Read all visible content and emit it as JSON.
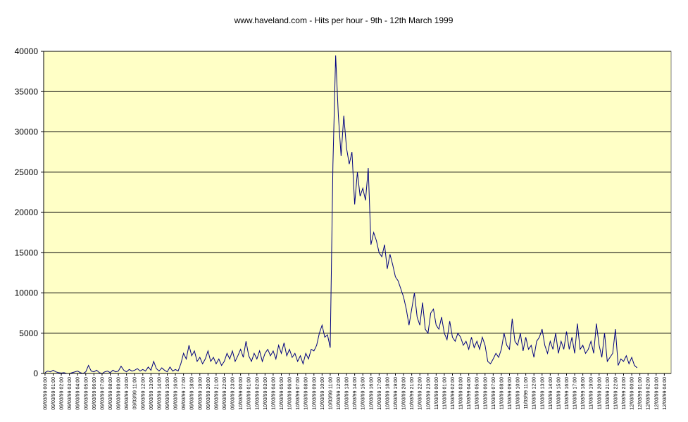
{
  "chart_data": {
    "type": "line",
    "title": "www.haveland.com - Hits per hour - 9th - 12th March 1999",
    "categories": [
      "09/03/99 00:00",
      null,
      null,
      "09/03/99 01:00",
      null,
      null,
      "09/03/99 02:00",
      null,
      null,
      "09/03/99 03:00",
      null,
      null,
      "09/03/99 04:00",
      null,
      null,
      "09/03/99 05:00",
      null,
      null,
      "09/03/99 06:00",
      null,
      null,
      "09/03/99 07:00",
      null,
      null,
      "09/03/99 08:00",
      null,
      null,
      "09/03/99 09:00",
      null,
      null,
      "09/03/99 10:00",
      null,
      null,
      "09/03/99 11:00",
      null,
      null,
      "09/03/99 12:00",
      null,
      null,
      "09/03/99 13:00",
      null,
      null,
      "09/03/99 14:00",
      null,
      null,
      "09/03/99 15:00",
      null,
      null,
      "09/03/99 16:00",
      null,
      null,
      "09/03/99 17:00",
      null,
      null,
      "09/03/99 18:00",
      null,
      null,
      "09/03/99 19:00",
      null,
      null,
      "09/03/99 20:00",
      null,
      null,
      "09/03/99 21:00",
      null,
      null,
      "09/03/99 22:00",
      null,
      null,
      "09/03/99 23:00",
      null,
      null,
      "10/03/99 00:00",
      null,
      null,
      "10/03/99 01:00",
      null,
      null,
      "10/03/99 02:00",
      null,
      null,
      "10/03/99 03:00",
      null,
      null,
      "10/03/99 04:00",
      null,
      null,
      "10/03/99 05:00",
      null,
      null,
      "10/03/99 06:00",
      null,
      null,
      "10/03/99 07:00",
      null,
      null,
      "10/03/99 08:00",
      null,
      null,
      "10/03/99 09:00",
      null,
      null,
      "10/03/99 10:00",
      null,
      null,
      "10/03/99 11:00",
      null,
      null,
      "10/03/99 12:00",
      null,
      null,
      "10/03/99 13:00",
      null,
      null,
      "10/03/99 14:00",
      null,
      null,
      "10/03/99 15:00",
      null,
      null,
      "10/03/99 16:00",
      null,
      null,
      "10/03/99 17:00",
      null,
      null,
      "10/03/99 18:00",
      null,
      null,
      "10/03/99 19:00",
      null,
      null,
      "10/03/99 20:00",
      null,
      null,
      "10/03/99 21:00",
      null,
      null,
      "10/03/99 22:00",
      null,
      null,
      "10/03/99 23:00",
      null,
      null,
      "11/03/99 00:00",
      null,
      null,
      "11/03/99 01:00",
      null,
      null,
      "11/03/99 02:00",
      null,
      null,
      "11/03/99 03:00",
      null,
      null,
      "11/03/99 04:00",
      null,
      null,
      "11/03/99 05:00",
      null,
      null,
      "11/03/99 06:00",
      null,
      null,
      "11/03/99 07:00",
      null,
      null,
      "11/03/99 08:00",
      null,
      null,
      "11/03/99 09:00",
      null,
      null,
      "11/03/99 10:00",
      null,
      null,
      "11/03/99 11:00",
      null,
      null,
      "11/03/99 12:00",
      null,
      null,
      "11/03/99 13:00",
      null,
      null,
      "11/03/99 14:00",
      null,
      null,
      "11/03/99 15:00",
      null,
      null,
      "11/03/99 16:00",
      null,
      null,
      "11/03/99 17:00",
      null,
      null,
      "11/03/99 18:00",
      null,
      null,
      "11/03/99 19:00",
      null,
      null,
      "11/03/99 20:00",
      null,
      null,
      "11/03/99 21:00",
      null,
      null,
      "11/03/99 22:00",
      null,
      null,
      "11/03/99 23:00",
      null,
      null,
      "12/03/99 00:00",
      null,
      null,
      "12/03/99 01:00",
      null,
      null,
      "12/03/99 02:00",
      null,
      null,
      "12/03/99 03:00",
      null,
      null,
      "12/03/99 04:00",
      null,
      null
    ],
    "series": [
      {
        "color": "#000080",
        "values": [
          100,
          300,
          200,
          400,
          200,
          100,
          50,
          100,
          0,
          0,
          100,
          200,
          300,
          100,
          0,
          200,
          1000,
          300,
          200,
          400,
          100,
          0,
          200,
          300,
          100,
          400,
          200,
          300,
          900,
          400,
          200,
          500,
          300,
          400,
          600,
          300,
          500,
          300,
          800,
          400,
          1500,
          600,
          300,
          700,
          400,
          200,
          800,
          300,
          500,
          300,
          1200,
          2500,
          1800,
          3500,
          2200,
          2800,
          1500,
          2000,
          1200,
          1800,
          2800,
          1500,
          2000,
          1200,
          1800,
          1000,
          1500,
          2500,
          1800,
          2800,
          1500,
          2200,
          3000,
          2000,
          4000,
          2200,
          1500,
          2500,
          1800,
          2800,
          1500,
          2500,
          3000,
          2200,
          2800,
          1800,
          3500,
          2500,
          3800,
          2200,
          3000,
          2000,
          2500,
          1500,
          2200,
          1200,
          2500,
          1800,
          3000,
          2800,
          3500,
          5000,
          6000,
          4500,
          4800,
          3200,
          26000,
          39500,
          32000,
          27000,
          32000,
          28000,
          26000,
          27500,
          21000,
          25000,
          22000,
          23000,
          21500,
          25500,
          16000,
          17500,
          16500,
          15000,
          14500,
          16000,
          13000,
          14800,
          13500,
          12000,
          11500,
          10500,
          9500,
          8000,
          6000,
          8000,
          10000,
          7000,
          6000,
          8800,
          5500,
          5000,
          7500,
          8000,
          6000,
          5500,
          7000,
          5000,
          4200,
          6500,
          4500,
          4000,
          5000,
          4500,
          3500,
          4000,
          3000,
          4500,
          3200,
          4000,
          3000,
          4500,
          3500,
          1500,
          1200,
          1800,
          2500,
          2000,
          3000,
          5000,
          3500,
          3000,
          6800,
          4000,
          3500,
          5000,
          2800,
          4500,
          3000,
          3500,
          2000,
          4000,
          4500,
          5500,
          3500,
          2500,
          4000,
          3000,
          5000,
          2500,
          4000,
          3000,
          5200,
          3000,
          4500,
          2500,
          6200,
          3000,
          3500,
          2500,
          3000,
          4000,
          2500,
          6200,
          3500,
          2000,
          5000,
          1500,
          2000,
          2500,
          5500,
          1000,
          1800,
          1500,
          2200,
          1200,
          2000,
          1000,
          700,
          null,
          null,
          null,
          null,
          null,
          null,
          null,
          null,
          null,
          null,
          null,
          null
        ]
      }
    ],
    "ylim": [
      0,
      40000
    ],
    "yticks": [
      0,
      5000,
      10000,
      15000,
      20000,
      25000,
      30000,
      35000,
      40000
    ],
    "grid": true
  }
}
